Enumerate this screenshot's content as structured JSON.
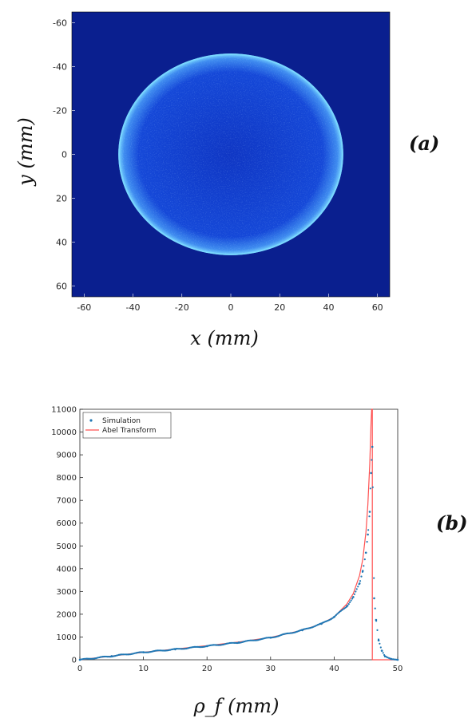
{
  "chart_data": [
    {
      "type": "heatmap",
      "panel_label": "(a)",
      "xlabel": "x (mm)",
      "ylabel": "y (mm)",
      "xlim": [
        -65,
        65
      ],
      "ylim": [
        -65,
        65
      ],
      "y_reversed": true,
      "x_ticks": [
        "-60",
        "-40",
        "-20",
        "0",
        "20",
        "40",
        "60"
      ],
      "y_ticks": [
        "-60",
        "-40",
        "-20",
        "0",
        "20",
        "40",
        "60"
      ],
      "disk": {
        "center": [
          0,
          0
        ],
        "radius_mm": 46
      },
      "colors": {
        "background": "#0a1f8f",
        "disk": "#0f3fd0",
        "rim": "#7ad8ff"
      }
    },
    {
      "type": "scatter",
      "panel_label": "(b)",
      "xlabel": "ρ_f (mm)",
      "ylabel": "",
      "xlim": [
        0,
        50
      ],
      "ylim": [
        0,
        11000
      ],
      "x_ticks": [
        "0",
        "10",
        "20",
        "30",
        "40",
        "50"
      ],
      "y_ticks": [
        "0",
        "1000",
        "2000",
        "3000",
        "4000",
        "5000",
        "6000",
        "7000",
        "8000",
        "9000",
        "10000",
        "11000"
      ],
      "legend_position": "top-left",
      "series": [
        {
          "name": "Simulation",
          "kind": "points",
          "color": "#1f77b4",
          "x": [
            0,
            5,
            10,
            15,
            20,
            25,
            30,
            35,
            38,
            40,
            42,
            43,
            44,
            44.5,
            45,
            45.3,
            45.6,
            45.8,
            46,
            46.3,
            46.6,
            47,
            47.5,
            48,
            49,
            50
          ],
          "y": [
            0,
            160,
            330,
            460,
            600,
            760,
            970,
            1300,
            1580,
            1880,
            2350,
            2750,
            3350,
            3900,
            4700,
            5500,
            6500,
            8200,
            9350,
            2700,
            1750,
            850,
            400,
            150,
            30,
            0
          ]
        },
        {
          "name": "Abel Transform",
          "kind": "line",
          "color": "#ff5050",
          "x": [
            0,
            5,
            10,
            15,
            20,
            25,
            30,
            35,
            38,
            40,
            42,
            43,
            44,
            44.5,
            45,
            45.3,
            45.6,
            45.8,
            45.9,
            46,
            46,
            50
          ],
          "y": [
            0,
            160,
            330,
            470,
            620,
            780,
            980,
            1300,
            1580,
            1880,
            2450,
            2900,
            3700,
            4400,
            5600,
            6800,
            8600,
            10400,
            11000,
            11000,
            0,
            0
          ]
        }
      ]
    }
  ]
}
